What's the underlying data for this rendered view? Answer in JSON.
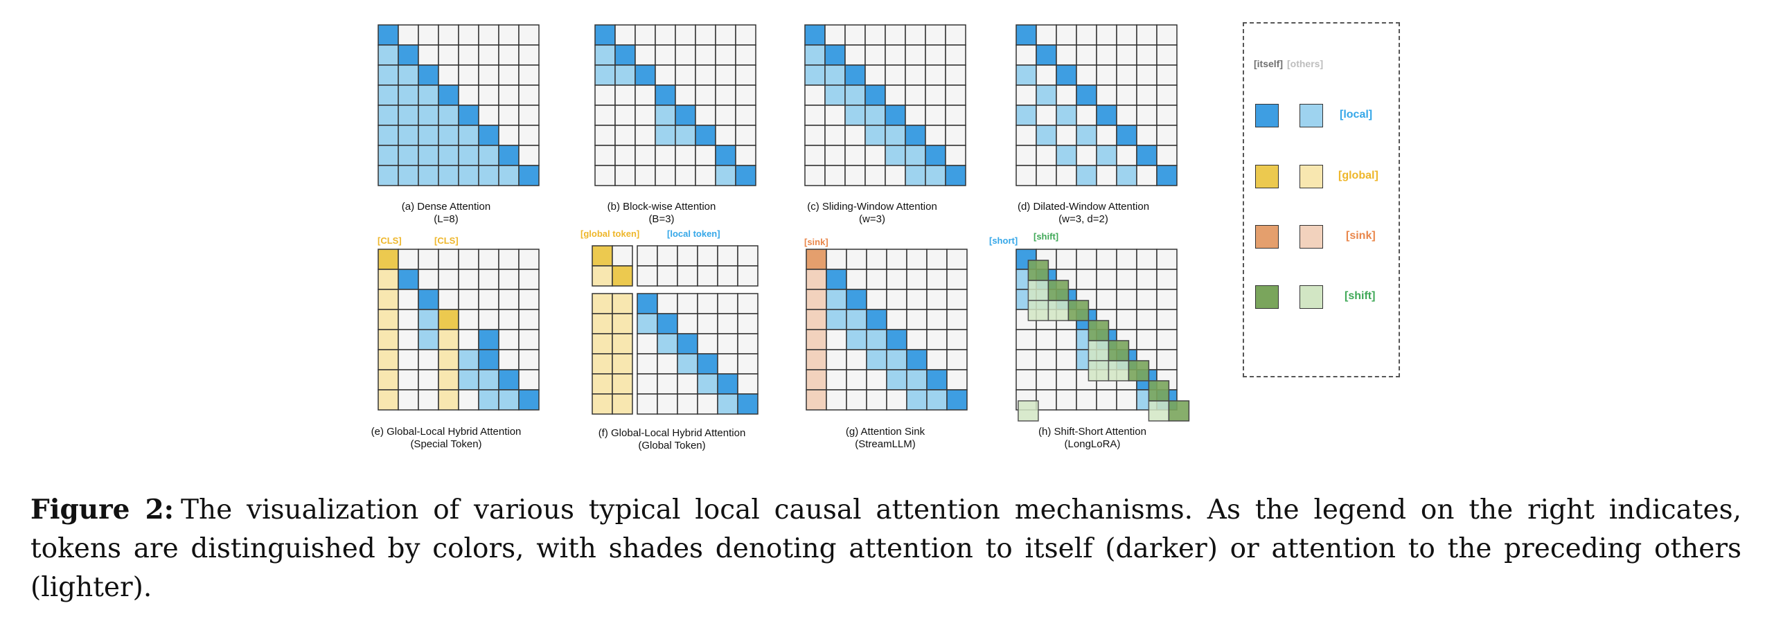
{
  "colors": {
    "local": {
      "dark": "#3e9ee2",
      "light": "#9ed3ef",
      "text": "#35a7e8"
    },
    "global": {
      "dark": "#ecc94f",
      "light": "#f8e7b0",
      "text": "#eeb62a"
    },
    "sink": {
      "dark": "#e49f6d",
      "light": "#f2d2bd",
      "text": "#e9864a"
    },
    "shift": {
      "dark": "#7aa55c",
      "light": "#d2e6c4",
      "text": "#3fa857"
    },
    "empty": "#f5f5f5",
    "grid_line": "#333333"
  },
  "panels": [
    {
      "id": "a",
      "label": "(a) Dense Attention",
      "sublabel": "(L=8)",
      "grid": [
        "D.......",
        "LD......",
        "LLD.....",
        "LLLD....",
        "LLLLD...",
        "LLLLLD..",
        "LLLLLLD.",
        "LLLLLLLD"
      ]
    },
    {
      "id": "b",
      "label": "(b) Block-wise Attention",
      "sublabel": "(B=3)",
      "grid": [
        "D.......",
        "LD......",
        "LLD.....",
        "...D....",
        "...LD...",
        "...LLD..",
        "......D.",
        "......LD"
      ]
    },
    {
      "id": "c",
      "label": "(c) Sliding-Window Attention",
      "sublabel": "(w=3)",
      "grid": [
        "D.......",
        "LD......",
        "LLD.....",
        ".LLD....",
        "..LLD...",
        "...LLD..",
        "....LLD.",
        ".....LLD"
      ]
    },
    {
      "id": "d",
      "label": "(d) Dilated-Window Attention",
      "sublabel": "(w=3, d=2)",
      "grid": [
        "D.......",
        ".D......",
        "L.D.....",
        ".L.D....",
        "L.L.D...",
        ".L.L.D..",
        "..L.L.D.",
        "...L.L.D"
      ]
    },
    {
      "id": "e",
      "label": "(e) Global-Local Hybrid Attention",
      "sublabel": "(Special Token)",
      "tags": [
        "[CLS]",
        "[CLS]"
      ],
      "grid": [
        "G.......",
        "gD......",
        "g.D.....",
        "g.LG....",
        "g.Lg D..",
        "g..gLD..",
        "g..gLLD.",
        "g..g.LLD"
      ]
    },
    {
      "id": "f",
      "label": "(f) Global-Local Hybrid Attention",
      "sublabel": "(Global Token)",
      "tags": [
        "[global token]",
        "[local token]"
      ],
      "grid": [
        "G.......",
        "gG......",
        "gg......",
        "ggD.....",
        "ggLD....",
        "gg.LD...",
        "gg..LD..",
        "gg...LD.",
        "gg....LD"
      ]
    },
    {
      "id": "g",
      "label": "(g) Attention Sink",
      "sublabel": "(StreamLLM)",
      "tags": [
        "[sink]"
      ],
      "grid": [
        "S.......",
        "sD......",
        "sLD.....",
        "sLLD....",
        "s.LLD...",
        "s..LLD..",
        "s...LLD.",
        "s....LLD"
      ]
    },
    {
      "id": "h",
      "label": "(h) Shift-Short Attention",
      "sublabel": "(LongLoRA)",
      "tags": [
        "[short]",
        "[shift]"
      ],
      "grid": [
        "D.......",
        "LD......",
        "LLD.....",
        "...D....",
        "...LD...",
        "...LLD..",
        "......D.",
        "......LD"
      ]
    }
  ],
  "legend": {
    "header_itself": "[itself]",
    "header_others": "[others]",
    "items": [
      {
        "key": "local",
        "label": "[local]"
      },
      {
        "key": "global",
        "label": "[global]"
      },
      {
        "key": "sink",
        "label": "[sink]"
      },
      {
        "key": "shift",
        "label": "[shift]"
      }
    ]
  },
  "caption": {
    "prefix": "Figure 2:",
    "text": "The visualization of various typical local causal attention mechanisms. As the legend on the right indicates, tokens are distinguished by colors, with shades denoting attention to itself (darker) or attention to the preceding others (lighter)."
  }
}
